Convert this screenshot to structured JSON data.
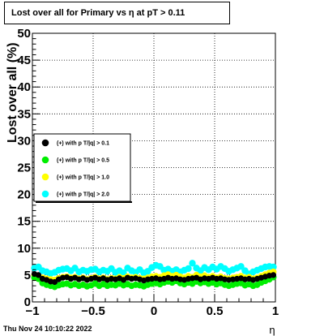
{
  "footer": {
    "date": "Thu Nov 24 10:10:22 2022"
  },
  "chart_data": {
    "type": "scatter",
    "title": "Lost over all for Primary vs  η at pT > 0.11",
    "xlabel": "η",
    "ylabel": "Lost over all (%)",
    "xlim": [
      -1,
      1
    ],
    "ylim": [
      0,
      50
    ],
    "xticks": [
      -1,
      -0.5,
      0,
      0.5,
      1
    ],
    "xtick_labels": [
      "−1",
      "−0.5",
      "0",
      "0.5",
      "1"
    ],
    "yticks": [
      0,
      5,
      10,
      15,
      20,
      25,
      30,
      35,
      40,
      45,
      50
    ],
    "grid": true,
    "legend_position": "left",
    "series": [
      {
        "name": "(+) with p T/|q| > 0.1",
        "color": "#000000",
        "values": [
          5.2,
          5.0,
          4.3,
          4.1,
          3.8,
          3.7,
          4.2,
          4.5,
          4.6,
          4.3,
          4.5,
          4.2,
          4.4,
          4.1,
          4.3,
          4.5,
          4.2,
          4.4,
          4.1,
          4.3,
          4.2,
          4.4,
          4.1,
          4.5,
          4.3,
          4.4,
          4.2,
          4.0,
          4.2,
          4.3,
          4.4,
          4.2,
          4.3,
          4.5,
          4.3,
          4.4,
          4.2,
          4.1,
          4.3,
          4.4,
          4.5,
          4.2,
          4.4,
          4.3,
          4.5,
          4.3,
          4.4,
          4.2,
          4.1,
          4.2,
          4.3,
          4.4,
          4.2,
          4.3,
          4.1,
          4.3,
          4.5,
          4.7,
          4.9,
          5.0
        ]
      },
      {
        "name": "(+) with p T/|q| > 0.5",
        "color": "#00ee00",
        "values": [
          4.5,
          4.3,
          3.5,
          3.2,
          3.0,
          2.8,
          3.1,
          3.3,
          3.4,
          3.1,
          3.3,
          3.0,
          3.2,
          2.9,
          3.1,
          3.4,
          3.0,
          3.3,
          3.0,
          3.2,
          3.1,
          3.4,
          3.1,
          3.3,
          3.0,
          3.2,
          3.1,
          2.9,
          3.2,
          3.4,
          3.5,
          3.3,
          3.6,
          3.8,
          3.6,
          3.9,
          3.5,
          3.3,
          3.6,
          3.4,
          3.8,
          3.5,
          3.7,
          3.4,
          3.6,
          3.3,
          3.5,
          3.2,
          3.0,
          3.2,
          3.4,
          3.5,
          3.1,
          3.3,
          3.0,
          3.2,
          3.6,
          3.9,
          4.2,
          4.6
        ]
      },
      {
        "name": "(+) with p T/|q| > 1.0",
        "color": "#ffff00",
        "values": [
          5.0,
          4.8,
          4.5,
          4.3,
          4.2,
          4.1,
          4.4,
          4.6,
          4.7,
          4.5,
          4.6,
          4.3,
          4.5,
          4.2,
          4.4,
          4.6,
          4.3,
          4.5,
          4.2,
          4.4,
          4.3,
          4.6,
          4.4,
          4.7,
          4.5,
          4.6,
          4.4,
          4.3,
          4.5,
          4.7,
          4.8,
          4.6,
          4.9,
          5.1,
          4.8,
          5.0,
          4.7,
          4.5,
          4.8,
          4.6,
          5.0,
          4.7,
          4.9,
          4.6,
          4.8,
          4.5,
          4.7,
          4.4,
          4.3,
          4.5,
          4.6,
          4.8,
          4.5,
          4.6,
          4.3,
          4.5,
          4.8,
          5.1,
          5.4,
          5.6
        ]
      },
      {
        "name": "(+) with p T/|q| > 2.0",
        "color": "#00ffff",
        "values": [
          6.3,
          6.5,
          5.8,
          5.6,
          5.3,
          5.5,
          5.9,
          6.1,
          6.2,
          5.8,
          6.3,
          5.6,
          5.9,
          5.7,
          6.0,
          6.1,
          5.6,
          5.9,
          5.7,
          6.2,
          5.5,
          5.8,
          5.4,
          6.3,
          5.8,
          5.5,
          6.0,
          5.4,
          5.7,
          6.4,
          6.8,
          6.6,
          5.9,
          6.1,
          5.7,
          6.0,
          5.6,
          5.9,
          6.2,
          7.2,
          6.3,
          5.8,
          6.4,
          6.0,
          6.5,
          6.1,
          6.6,
          6.2,
          5.7,
          6.0,
          6.3,
          6.6,
          5.8,
          5.2,
          5.6,
          5.9,
          6.2,
          6.5,
          6.6,
          6.5
        ]
      }
    ]
  }
}
